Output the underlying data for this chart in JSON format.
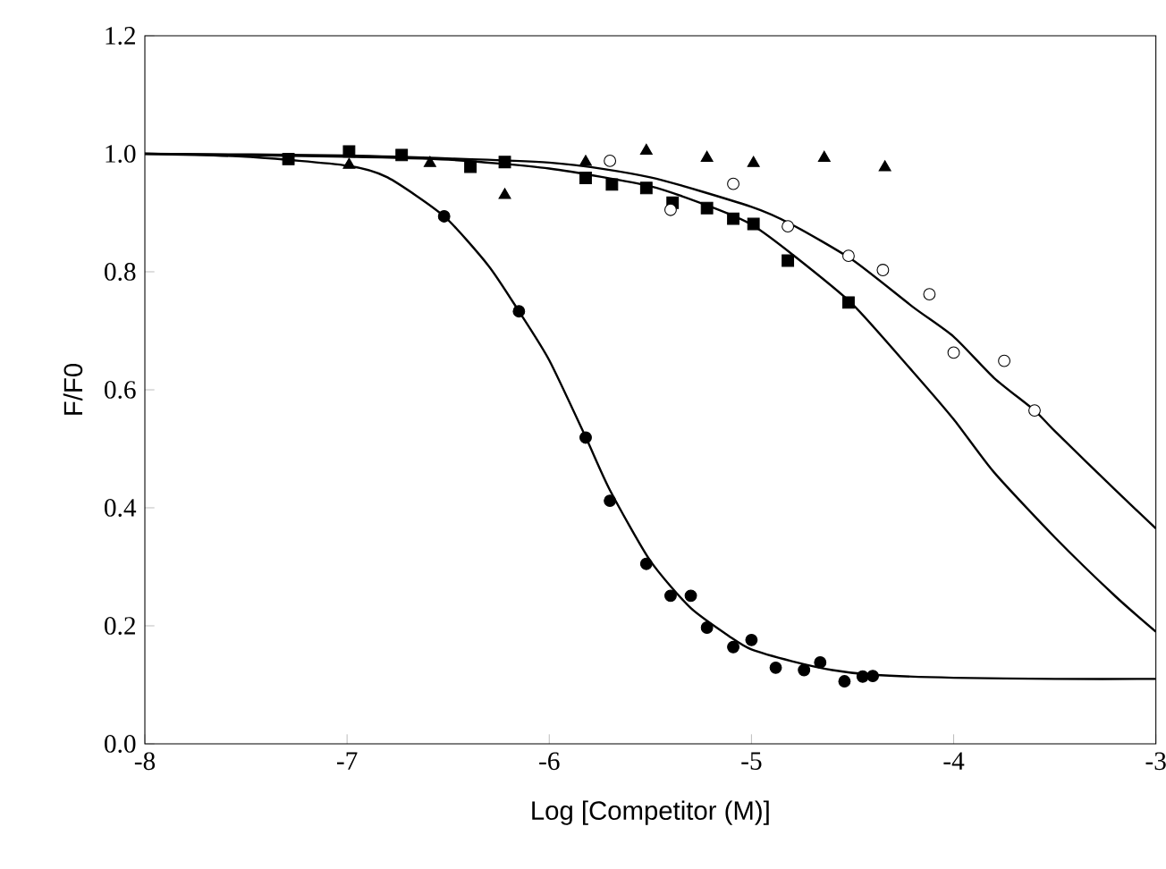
{
  "chart_data": {
    "type": "scatter",
    "xlabel": "Log [Competitor (M)]",
    "ylabel": "F/F0",
    "xlim": [
      -8,
      -3
    ],
    "ylim": [
      0,
      1.2
    ],
    "xticks": [
      -8,
      -7,
      -6,
      -5,
      -4,
      -3
    ],
    "yticks": [
      {
        "value": 0,
        "label": "0.0"
      },
      {
        "value": 0.2,
        "label": "0.2"
      },
      {
        "value": 0.4,
        "label": "0.4"
      },
      {
        "value": 0.6,
        "label": "0.6"
      },
      {
        "value": 0.8,
        "label": "0.8"
      },
      {
        "value": 1.0,
        "label": "1.0"
      },
      {
        "value": 1.2,
        "label": "1.2"
      }
    ],
    "grid": false,
    "series": [
      {
        "marker": "circle",
        "color": "#000000",
        "x": [
          -6.52,
          -6.15,
          -5.82,
          -5.7,
          -5.52,
          -5.4,
          -5.3,
          -5.22,
          -5.09,
          -5.0,
          -4.88,
          -4.74,
          -4.66,
          -4.54,
          -4.45,
          -4.4
        ],
        "values": [
          0.894,
          0.733,
          0.519,
          0.412,
          0.305,
          0.251,
          0.251,
          0.197,
          0.164,
          0.176,
          0.129,
          0.125,
          0.138,
          0.106,
          0.114,
          0.115
        ]
      },
      {
        "marker": "square",
        "color": "#000000",
        "x": [
          -7.29,
          -6.99,
          -6.73,
          -6.39,
          -6.22,
          -5.82,
          -5.69,
          -5.52,
          -5.39,
          -5.22,
          -5.09,
          -4.99,
          -4.82,
          -4.52
        ],
        "values": [
          0.991,
          1.004,
          0.998,
          0.978,
          0.986,
          0.959,
          0.948,
          0.942,
          0.917,
          0.908,
          0.89,
          0.881,
          0.819,
          0.748
        ]
      },
      {
        "marker": "triangle",
        "color": "#000000",
        "x": [
          -6.99,
          -6.59,
          -6.22,
          -5.82,
          -5.52,
          -5.22,
          -4.99,
          -4.64,
          -4.34
        ],
        "values": [
          0.981,
          0.984,
          0.93,
          0.986,
          1.005,
          0.993,
          0.984,
          0.993,
          0.977
        ]
      },
      {
        "marker": "circle",
        "color": "#ffffff",
        "x": [
          -5.7,
          -5.4,
          -5.09,
          -4.82,
          -4.52,
          -4.35,
          -4.12,
          -4.0,
          -3.75,
          -3.6
        ],
        "values": [
          0.988,
          0.905,
          0.949,
          0.877,
          0.827,
          0.803,
          0.762,
          0.663,
          0.649,
          0.565
        ]
      },
      {
        "type": "line",
        "marker": "none",
        "line_style": "solid",
        "color": "#000000",
        "x": [
          -8,
          -7.5,
          -7,
          -6.8,
          -6.52,
          -6.3,
          -6.15,
          -6,
          -5.82,
          -5.7,
          -5.5,
          -5.3,
          -5.1,
          -5,
          -4.8,
          -4.6,
          -4.4,
          -4,
          -3.5,
          -3
        ],
        "values": [
          1.0,
          0.995,
          0.98,
          0.96,
          0.894,
          0.81,
          0.733,
          0.65,
          0.52,
          0.43,
          0.31,
          0.23,
          0.18,
          0.16,
          0.14,
          0.125,
          0.117,
          0.112,
          0.11,
          0.11
        ]
      },
      {
        "type": "line",
        "marker": "none",
        "line_style": "solid",
        "color": "#000000",
        "x": [
          -8,
          -7,
          -6.5,
          -6,
          -5.5,
          -5.2,
          -5,
          -4.8,
          -4.5,
          -4.2,
          -4,
          -3.8,
          -3.5,
          -3.2,
          -3
        ],
        "values": [
          1.0,
          0.995,
          0.99,
          0.975,
          0.945,
          0.91,
          0.88,
          0.83,
          0.745,
          0.63,
          0.55,
          0.46,
          0.35,
          0.25,
          0.19
        ]
      },
      {
        "type": "line",
        "marker": "none",
        "line_style": "solid",
        "color": "#000000",
        "x": [
          -8,
          -7,
          -6,
          -5.5,
          -5,
          -4.8,
          -4.5,
          -4.2,
          -4,
          -3.8,
          -3.6,
          -3.5,
          -3.2,
          -3
        ],
        "values": [
          1.0,
          0.997,
          0.985,
          0.96,
          0.91,
          0.88,
          0.82,
          0.74,
          0.69,
          0.62,
          0.565,
          0.53,
          0.43,
          0.365
        ]
      }
    ]
  }
}
